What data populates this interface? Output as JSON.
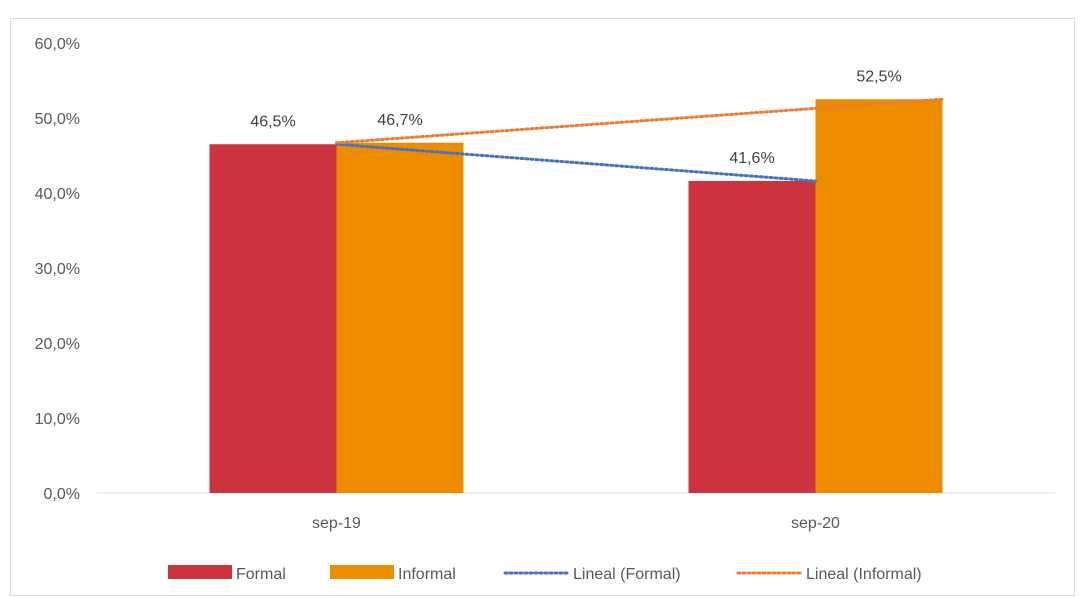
{
  "chart_data": {
    "type": "bar",
    "title": "",
    "xlabel": "",
    "ylabel": "",
    "categories": [
      "sep-19",
      "sep-20"
    ],
    "series": [
      {
        "name": "Formal",
        "values": [
          46.5,
          41.6
        ],
        "color": "#cc333d",
        "labels": [
          "46,5%",
          "41,6%"
        ]
      },
      {
        "name": "Informal",
        "values": [
          46.7,
          52.5
        ],
        "color": "#ee8c00",
        "labels": [
          "46,7%",
          "52,5%"
        ]
      }
    ],
    "trendlines": [
      {
        "name": "Lineal (Formal)",
        "series": "Formal",
        "color": "#4472c4",
        "style": "dotted"
      },
      {
        "name": "Lineal (Informal)",
        "series": "Informal",
        "color": "#ed7d31",
        "style": "dotted"
      }
    ],
    "ylim": [
      0,
      60
    ],
    "yticks": [
      0,
      10,
      20,
      30,
      40,
      50,
      60
    ],
    "ytick_labels": [
      "0,0%",
      "10,0%",
      "20,0%",
      "30,0%",
      "40,0%",
      "50,0%",
      "60,0%"
    ],
    "grid": false,
    "legend_position": "bottom"
  },
  "top_text": ""
}
